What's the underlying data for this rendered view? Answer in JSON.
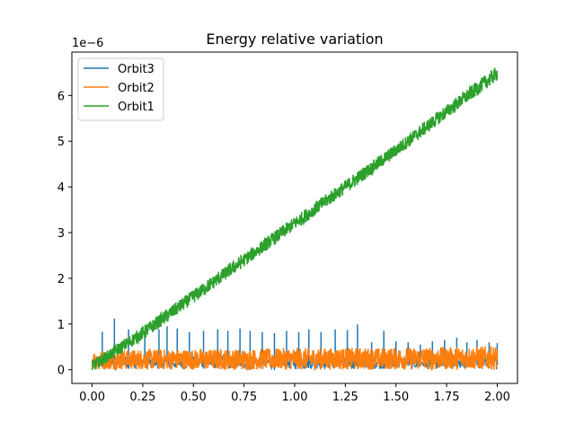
{
  "chart_data": {
    "type": "line",
    "title": "Energy relative variation",
    "xlabel": "",
    "ylabel": "",
    "y_offset_label": "1e−6",
    "y_scale": 1e-06,
    "xlim": [
      -0.1,
      2.1
    ],
    "ylim": [
      -0.3,
      6.95
    ],
    "x_ticks": [
      0.0,
      0.25,
      0.5,
      0.75,
      1.0,
      1.25,
      1.5,
      1.75,
      2.0
    ],
    "x_tick_labels": [
      "0.00",
      "0.25",
      "0.50",
      "0.75",
      "1.00",
      "1.25",
      "1.50",
      "1.75",
      "2.00"
    ],
    "y_ticks": [
      0,
      1,
      2,
      3,
      4,
      5,
      6
    ],
    "y_tick_labels": [
      "0",
      "1",
      "2",
      "3",
      "4",
      "5",
      "6"
    ],
    "grid": false,
    "legend_position": "upper-left",
    "series": [
      {
        "name": "Orbit3",
        "color": "#1f77b4",
        "x": [
          0.0,
          0.05,
          0.11,
          0.18,
          0.26,
          0.33,
          0.37,
          0.42,
          0.48,
          0.55,
          0.62,
          0.67,
          0.73,
          0.78,
          0.84,
          0.9,
          0.96,
          1.02,
          1.07,
          1.13,
          1.2,
          1.26,
          1.31,
          1.38,
          1.44,
          1.5,
          1.56,
          1.62,
          1.68,
          1.74,
          1.8,
          1.85,
          1.9,
          1.96,
          2.0
        ],
        "values": [
          0.1,
          0.83,
          1.12,
          0.88,
          0.82,
          0.88,
          0.95,
          0.9,
          0.82,
          0.85,
          0.88,
          0.85,
          0.9,
          0.85,
          0.82,
          0.8,
          0.85,
          0.82,
          0.88,
          0.82,
          0.88,
          0.87,
          0.99,
          0.6,
          0.85,
          0.62,
          0.6,
          0.55,
          0.62,
          0.65,
          0.7,
          0.6,
          0.65,
          0.6,
          0.58
        ]
      },
      {
        "name": "Orbit2",
        "color": "#ff7f0e",
        "x": [
          0.0,
          0.25,
          0.5,
          0.75,
          1.0,
          1.25,
          1.5,
          1.75,
          2.0
        ],
        "values": [
          0.2,
          0.22,
          0.22,
          0.22,
          0.22,
          0.22,
          0.22,
          0.22,
          0.22
        ],
        "band_low": [
          0.0,
          0.0,
          0.0,
          0.0,
          0.0,
          0.0,
          0.0,
          0.0,
          0.0
        ],
        "band_high": [
          0.42,
          0.45,
          0.45,
          0.45,
          0.48,
          0.48,
          0.48,
          0.5,
          0.52
        ]
      },
      {
        "name": "Orbit1",
        "color": "#2ca02c",
        "x": [
          0.0,
          0.25,
          0.5,
          0.75,
          1.0,
          1.25,
          1.5,
          1.75,
          2.0
        ],
        "values": [
          0.05,
          0.8,
          1.6,
          2.4,
          3.2,
          4.0,
          4.8,
          5.65,
          6.5
        ],
        "band_low": [
          -0.05,
          0.65,
          1.45,
          2.25,
          3.05,
          3.85,
          4.65,
          5.5,
          6.32
        ],
        "band_high": [
          0.2,
          0.95,
          1.75,
          2.55,
          3.35,
          4.15,
          4.95,
          5.8,
          6.65
        ]
      }
    ]
  }
}
